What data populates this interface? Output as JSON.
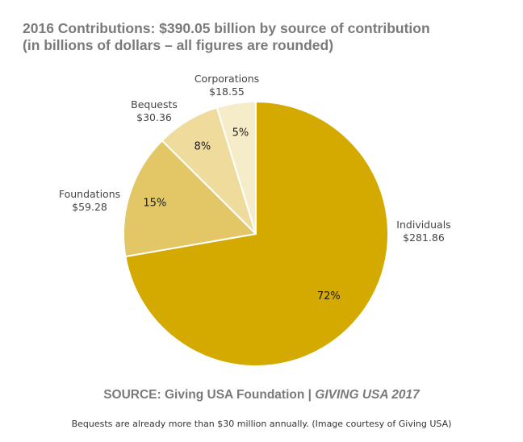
{
  "chart_data": {
    "type": "pie",
    "title": "2016 Contributions: $390.05 billion by source of contribution",
    "subtitle": "(in billions of dollars – all figures are rounded)",
    "total": 390.05,
    "slices": [
      {
        "name": "Individuals",
        "value": 281.86,
        "value_label": "$281.86",
        "percent_label": "72%",
        "color": "#d4a900"
      },
      {
        "name": "Foundations",
        "value": 59.28,
        "value_label": "$59.28",
        "percent_label": "15%",
        "color": "#e3c767"
      },
      {
        "name": "Bequests",
        "value": 30.36,
        "value_label": "$30.36",
        "percent_label": "8%",
        "color": "#efdc9d"
      },
      {
        "name": "Corporations",
        "value": 18.55,
        "value_label": "$18.55",
        "percent_label": "5%",
        "color": "#f6ecc9"
      }
    ]
  },
  "source": {
    "text": "SOURCE: Giving USA Foundation | ",
    "publication": "GIVING USA 2017"
  },
  "caption": "Bequests are already more than $30 million annually. (Image courtesy of Giving USA)"
}
